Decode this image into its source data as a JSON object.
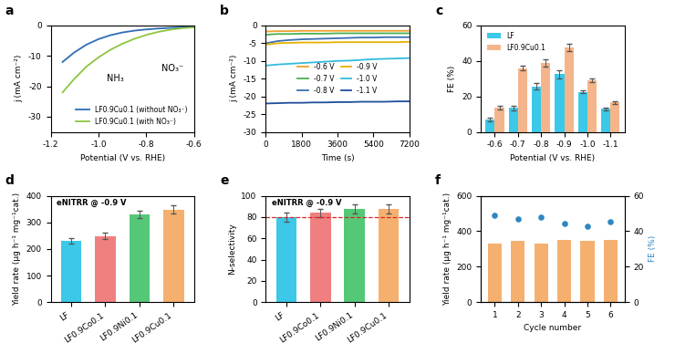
{
  "chart_data": [
    {
      "label": "a",
      "type": "line",
      "x": [
        -1.15,
        -1.1,
        -1.05,
        -1.0,
        -0.95,
        -0.9,
        -0.85,
        -0.8,
        -0.75,
        -0.7,
        -0.65,
        -0.6
      ],
      "series": [
        {
          "name": "LF0.9Cu0.1 (without NO₃⁻)",
          "color": "#2e6db4",
          "values": [
            -12.0,
            -8.8,
            -6.3,
            -4.5,
            -3.2,
            -2.3,
            -1.7,
            -1.3,
            -1.0,
            -0.8,
            -0.6,
            -0.5
          ]
        },
        {
          "name": "LF0.9Cu0.1 (with NO₃⁻)",
          "color": "#8cc63f",
          "values": [
            -22.0,
            -17.5,
            -13.5,
            -10.5,
            -8.0,
            -6.0,
            -4.4,
            -3.1,
            -2.1,
            -1.4,
            -0.9,
            -0.6
          ]
        }
      ],
      "xlim": [
        -1.2,
        -0.6
      ],
      "xticks": [
        -1.2,
        -1.0,
        -0.8,
        -0.6
      ],
      "ylim": [
        -35,
        0
      ],
      "yticks": [
        -30,
        -20,
        -10,
        0
      ],
      "x_label": "Potential (V vs. RHE)",
      "y_label": "j (mA cm⁻²)",
      "annotations": [
        "NO₃⁻",
        "NH₃"
      ],
      "legend": "lower right"
    },
    {
      "label": "b",
      "type": "line",
      "x": [
        0,
        600,
        1200,
        1800,
        2400,
        3000,
        3600,
        4200,
        4800,
        5400,
        6000,
        6600,
        7200
      ],
      "series": [
        {
          "name": "-0.6 V",
          "color": "#f0a030",
          "values": [
            -1.7,
            -1.6,
            -1.6,
            -1.5,
            -1.5,
            -1.5,
            -1.5,
            -1.5,
            -1.5,
            -1.5,
            -1.5,
            -1.5,
            -1.5
          ]
        },
        {
          "name": "-0.7 V",
          "color": "#4caf50",
          "values": [
            -2.6,
            -2.4,
            -2.4,
            -2.3,
            -2.3,
            -2.3,
            -2.2,
            -2.2,
            -2.2,
            -2.2,
            -2.2,
            -2.2,
            -2.2
          ]
        },
        {
          "name": "-0.8 V",
          "color": "#3a6fb0",
          "values": [
            -5.0,
            -4.4,
            -4.1,
            -3.9,
            -3.8,
            -3.7,
            -3.6,
            -3.5,
            -3.4,
            -3.4,
            -3.3,
            -3.3,
            -3.3
          ]
        },
        {
          "name": "-0.9 V",
          "color": "#e8b000",
          "values": [
            -5.4,
            -5.0,
            -4.9,
            -4.8,
            -4.8,
            -4.8,
            -4.7,
            -4.7,
            -4.7,
            -4.7,
            -4.7,
            -4.7,
            -4.6
          ]
        },
        {
          "name": "-1.0 V",
          "color": "#33bbdd",
          "values": [
            -11.3,
            -11.0,
            -10.8,
            -10.6,
            -10.4,
            -10.2,
            -10.0,
            -9.9,
            -9.7,
            -9.5,
            -9.4,
            -9.3,
            -9.2
          ]
        },
        {
          "name": "-1.1 V",
          "color": "#1f4e9c",
          "values": [
            -22.0,
            -21.9,
            -21.8,
            -21.8,
            -21.7,
            -21.7,
            -21.6,
            -21.6,
            -21.5,
            -21.5,
            -21.5,
            -21.4,
            -21.4
          ]
        }
      ],
      "xlim": [
        0,
        7200
      ],
      "xticks": [
        0,
        1800,
        3600,
        5400,
        7200
      ],
      "ylim": [
        -30,
        0
      ],
      "yticks": [
        -30,
        -25,
        -20,
        -15,
        -10,
        -5,
        0
      ],
      "x_label": "Time (s)",
      "y_label": "j (mA cm⁻²)",
      "legend": "center"
    },
    {
      "label": "c",
      "type": "bar",
      "categories": [
        "-0.6",
        "-0.7",
        "-0.8",
        "-0.9",
        "-1.0",
        "-1.1"
      ],
      "series": [
        {
          "name": "LF",
          "color": "#3cc8e8",
          "values": [
            7,
            13.5,
            25.5,
            32.5,
            22.5,
            13
          ],
          "errors": [
            0.8,
            1.2,
            1.8,
            2.2,
            0.8,
            0.8
          ]
        },
        {
          "name": "LF0.9Cu0.1",
          "color": "#f5b58a",
          "values": [
            13.5,
            36,
            39,
            47.5,
            29,
            16.5
          ],
          "errors": [
            1.0,
            1.5,
            2.0,
            2.0,
            1.0,
            1.0
          ]
        }
      ],
      "ylim": [
        0,
        60
      ],
      "yticks": [
        0,
        20,
        40,
        60
      ],
      "x_label": "Potential (V vs. RHE)",
      "y_label": "FE (%)",
      "legend": "upper left"
    },
    {
      "label": "d",
      "type": "bar",
      "categories": [
        "LF",
        "LF0.9Co0.1",
        "LF0.9Ni0.1",
        "LF0.9Cu0.1"
      ],
      "series": [
        {
          "colors": [
            "#3cc8e8",
            "#f08080",
            "#55c878",
            "#f5b070"
          ],
          "values": [
            230,
            248,
            330,
            348
          ],
          "errors": [
            10,
            12,
            15,
            15
          ]
        }
      ],
      "ylim": [
        0,
        400
      ],
      "yticks": [
        0,
        100,
        200,
        300,
        400
      ],
      "y_label": "Yield rate (μg h⁻¹ mg⁻¹cat.)",
      "condition": "eNITRR @ -0.9 V"
    },
    {
      "label": "e",
      "type": "bar",
      "categories": [
        "LF",
        "LF0.9Co0.1",
        "LF0.9Ni0.1",
        "LF0.9Cu0.1"
      ],
      "series": [
        {
          "colors": [
            "#3cc8e8",
            "#f08080",
            "#55c878",
            "#f5b070"
          ],
          "values": [
            80,
            84,
            87.5,
            87.5
          ],
          "errors": [
            4,
            4,
            4,
            4
          ]
        }
      ],
      "ylim": [
        0,
        100
      ],
      "yticks": [
        0,
        20,
        40,
        60,
        80,
        100
      ],
      "y_label": "N-selectivity",
      "condition": "eNITRR @ -0.9 V",
      "threshold": 80
    },
    {
      "label": "f",
      "type": "bar",
      "categories": [
        "1",
        "2",
        "3",
        "4",
        "5",
        "6"
      ],
      "series": [
        {
          "name": "Yield rate",
          "color": "#f5b070",
          "values": [
            330,
            345,
            330,
            350,
            348,
            350
          ]
        },
        {
          "name": "FE",
          "type": "scatter",
          "axis": "y2",
          "color": "#2e86c1",
          "values": [
            49,
            47,
            48,
            44.5,
            43,
            45.5
          ]
        }
      ],
      "ylim": [
        0,
        600
      ],
      "yticks": [
        0,
        200,
        400,
        600
      ],
      "y2lim": [
        0,
        60
      ],
      "y2ticks": [
        0,
        20,
        40,
        60
      ],
      "x_label": "Cycle number",
      "y_label": "Yield rate (μg h⁻¹ mg⁻¹cat.)",
      "y2_label": "FE (%)"
    }
  ]
}
